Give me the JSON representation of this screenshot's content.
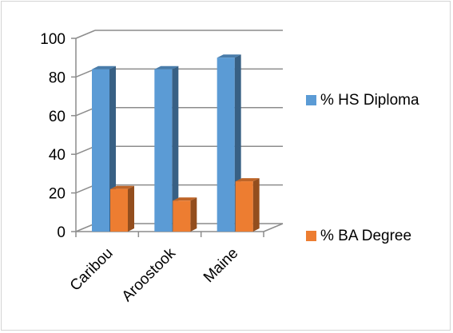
{
  "chart_data": {
    "type": "bar",
    "style": "3d-clustered-column",
    "categories": [
      "Caribou",
      "Aroostook",
      "Maine"
    ],
    "series": [
      {
        "name": "% HS Diploma",
        "values": [
          84,
          84,
          90
        ],
        "color": "#5b9bd5"
      },
      {
        "name": "% BA Degree",
        "values": [
          22,
          16,
          26
        ],
        "color": "#ed7d31"
      }
    ],
    "ylim": [
      0,
      100
    ],
    "yticks": [
      0,
      20,
      40,
      60,
      80,
      100
    ],
    "grid": true,
    "legend_position": "right",
    "title": "",
    "xlabel": "",
    "ylabel": ""
  }
}
